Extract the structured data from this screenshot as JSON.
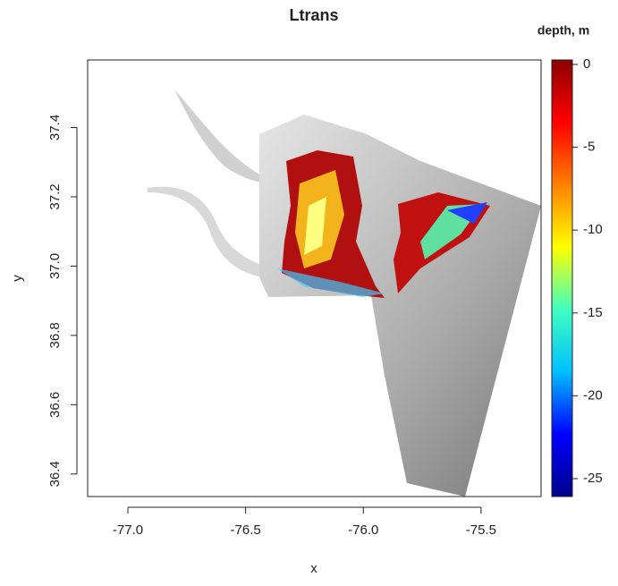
{
  "chart_data": {
    "type": "raster-map",
    "title": "Ltrans",
    "xlabel": "x",
    "ylabel": "y",
    "colorbar_title": "depth, m",
    "xlim": [
      -77.171,
      -75.245
    ],
    "ylim": [
      36.335,
      37.595
    ],
    "xticks": [
      {
        "value": -77,
        "label": "-77.0"
      },
      -76.5,
      {
        "value": -76,
        "label": "-76.0"
      },
      -75.5
    ],
    "yticks": [
      36.4,
      36.6,
      36.8,
      {
        "value": 37,
        "label": "37.0"
      },
      37.2,
      37.4
    ],
    "zlim": [
      -26.08,
      0.27
    ],
    "zticks": [
      0,
      -5,
      -10,
      -15,
      -20,
      -25
    ],
    "colorscale": [
      "#00008b",
      "#0000ff",
      "#00bfff",
      "#40ffbf",
      "#ffff00",
      "#ff8000",
      "#ff0000",
      "#8b0000"
    ]
  }
}
